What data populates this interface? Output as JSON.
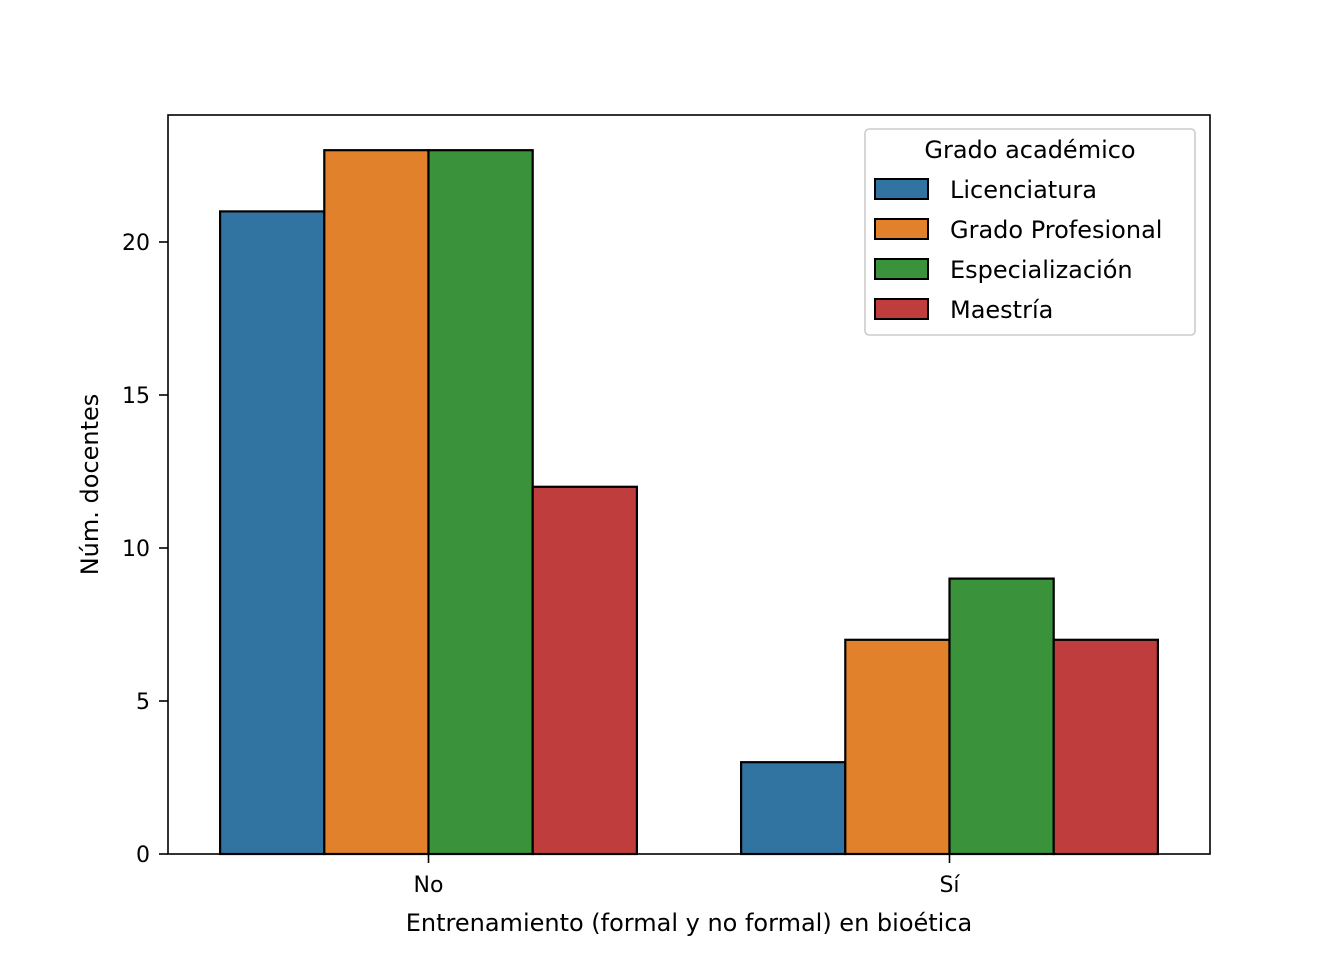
{
  "chart_data": {
    "type": "bar",
    "xlabel": "Entrenamiento (formal y no formal) en bioética",
    "ylabel": "Núm. docentes",
    "categories": [
      "No",
      "Sí"
    ],
    "ylim": [
      0,
      24.15
    ],
    "yticks": [
      0,
      5,
      10,
      15,
      20
    ],
    "grid": false,
    "legend": {
      "title": "Grado académico",
      "placement": "top-right"
    },
    "series": [
      {
        "name": "Licenciatura",
        "color": "#3274a1",
        "values": [
          21,
          3
        ]
      },
      {
        "name": "Grado Profesional",
        "color": "#e1812c",
        "values": [
          23,
          7
        ]
      },
      {
        "name": "Especialización",
        "color": "#3a923a",
        "values": [
          23,
          9
        ]
      },
      {
        "name": "Maestría",
        "color": "#c03d3e",
        "values": [
          12,
          7
        ]
      }
    ]
  }
}
